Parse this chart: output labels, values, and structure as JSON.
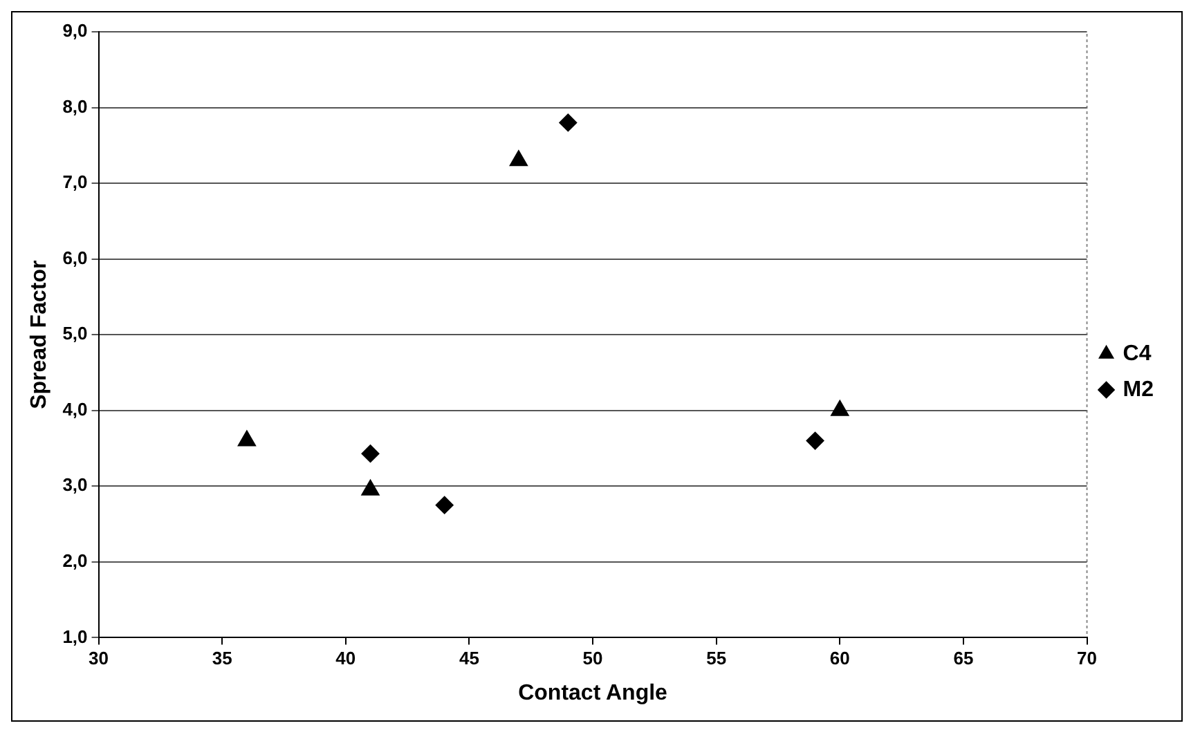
{
  "chart_data": {
    "type": "scatter",
    "xlabel": "Contact Angle",
    "ylabel": "Spread Factor",
    "series": [
      {
        "name": "C4",
        "color": "#000000",
        "marker": "triangle",
        "x": [
          36,
          41,
          47,
          60
        ],
        "values": [
          3.6,
          2.95,
          7.3,
          4.0
        ]
      },
      {
        "name": "M2",
        "color": "#000000",
        "marker": "diamond",
        "x": [
          41,
          44,
          49,
          59
        ],
        "values": [
          3.43,
          2.75,
          7.8,
          3.6
        ]
      }
    ],
    "xlim": [
      30,
      70
    ],
    "xticks": [
      30,
      35,
      40,
      45,
      50,
      55,
      60,
      65,
      70
    ],
    "ylim": [
      1,
      9
    ],
    "yticks": [
      {
        "value": 1,
        "label": "1,0"
      },
      {
        "value": 2,
        "label": "2,0"
      },
      {
        "value": 3,
        "label": "3,0"
      },
      {
        "value": 4,
        "label": "4,0"
      },
      {
        "value": 5,
        "label": "5,0"
      },
      {
        "value": 6,
        "label": "6,0"
      },
      {
        "value": 7,
        "label": "7,0"
      },
      {
        "value": 8,
        "label": "8,0"
      },
      {
        "value": 9,
        "label": "9,0"
      }
    ],
    "grid": "y",
    "legend": "right"
  }
}
